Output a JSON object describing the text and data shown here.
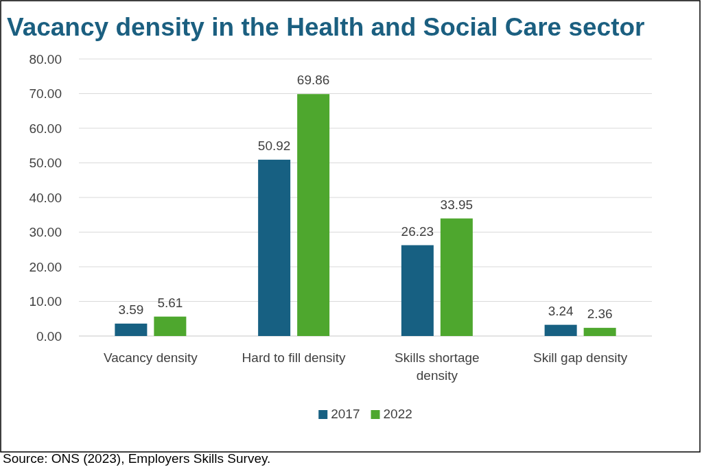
{
  "chart_data": {
    "type": "bar",
    "title": "Vacancy density in the Health and Social Care sector",
    "categories": [
      "Vacancy density",
      "Hard to fill density",
      "Skills shortage density",
      "Skill gap density"
    ],
    "series": [
      {
        "name": "2017",
        "color": "#176082",
        "values": [
          3.59,
          50.92,
          26.23,
          3.24
        ]
      },
      {
        "name": "2022",
        "color": "#4ea72e",
        "values": [
          5.61,
          69.86,
          33.95,
          2.36
        ]
      }
    ],
    "ylim": [
      0,
      80
    ],
    "yticks": [
      {
        "value": 0,
        "label": "0.00"
      },
      {
        "value": 10,
        "label": "10.00"
      },
      {
        "value": 20,
        "label": "20.00"
      },
      {
        "value": 30,
        "label": "30.00"
      },
      {
        "value": 40,
        "label": "40.00"
      },
      {
        "value": 50,
        "label": "50.00"
      },
      {
        "value": 60,
        "label": "60.00"
      },
      {
        "value": 70,
        "label": "70.00"
      },
      {
        "value": 80,
        "label": "80.00"
      }
    ],
    "grid": "y",
    "legend": "bottom",
    "data_labels": true,
    "annotations": [
      "Source: ONS (2023), Employers Skills Survey."
    ]
  }
}
